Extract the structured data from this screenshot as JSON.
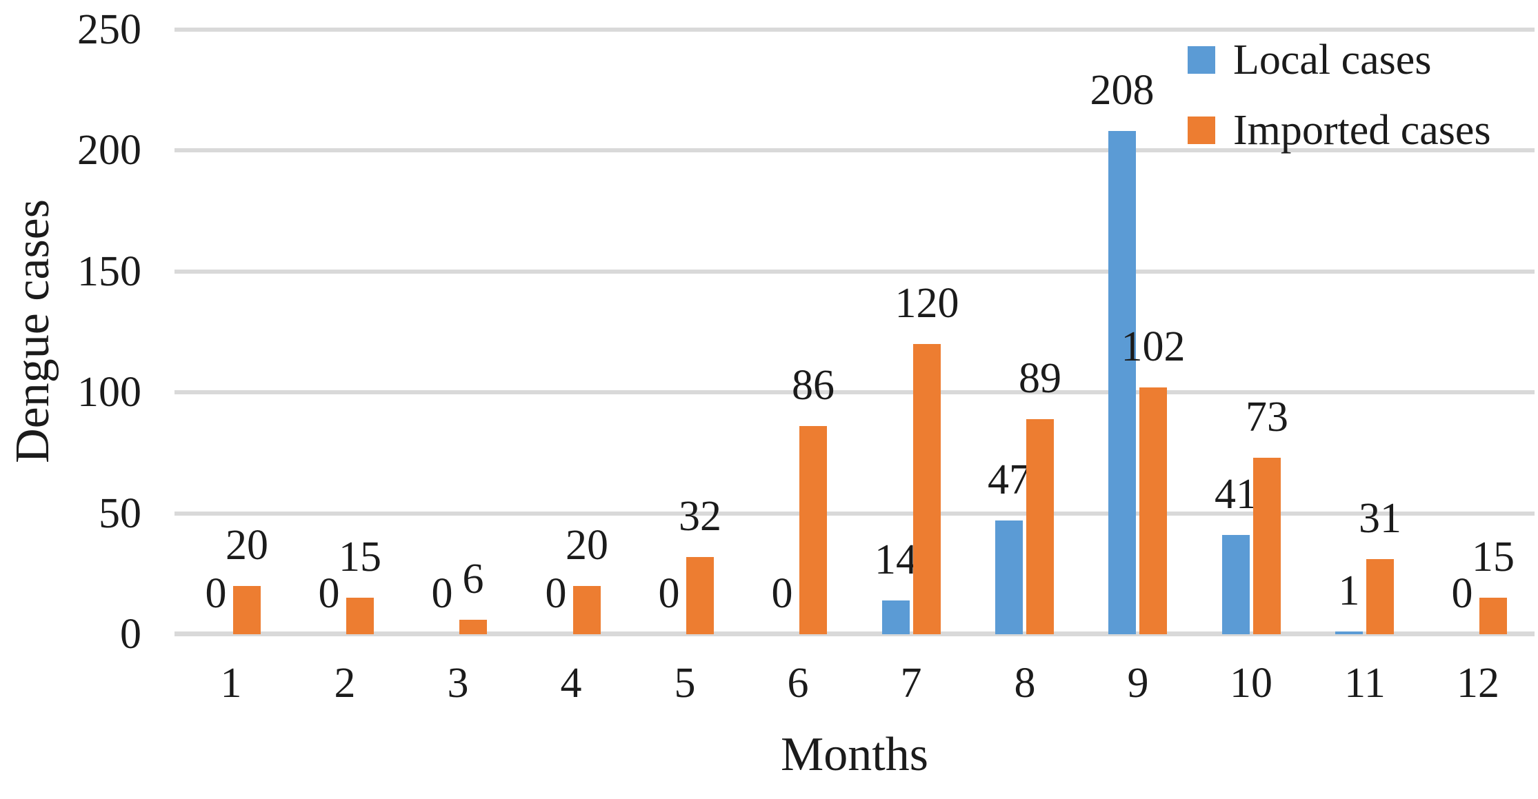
{
  "chart_data": {
    "type": "bar",
    "title": "",
    "xlabel": "Months",
    "ylabel": "Dengue cases",
    "categories": [
      "1",
      "2",
      "3",
      "4",
      "5",
      "6",
      "7",
      "8",
      "9",
      "10",
      "11",
      "12"
    ],
    "series": [
      {
        "name": "Local cases",
        "color": "#5B9BD5",
        "values": [
          0,
          0,
          0,
          0,
          0,
          0,
          14,
          47,
          208,
          41,
          1,
          0
        ]
      },
      {
        "name": "Imported cases",
        "color": "#ED7D31",
        "values": [
          20,
          15,
          6,
          20,
          32,
          86,
          120,
          89,
          102,
          73,
          31,
          15
        ]
      }
    ],
    "ylim": [
      0,
      250
    ],
    "yticks": [
      0,
      50,
      100,
      150,
      200,
      250
    ],
    "grid": true,
    "gridline_color": "#D9D9D9",
    "text_color": "#1b1b1b",
    "background_color": "#ffffff",
    "data_labels": true,
    "legend_position": "top-right"
  }
}
